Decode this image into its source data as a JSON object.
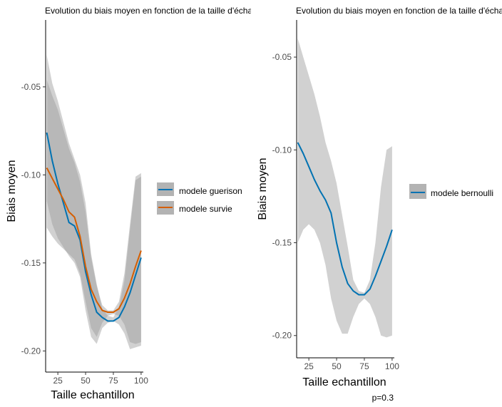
{
  "chart_data": [
    {
      "type": "line",
      "title": "Evolution du biais moyen en fonction de la taille d'échantillon",
      "xlabel": "Taille echantillon",
      "ylabel": "Biais moyen",
      "xlim": [
        14,
        102
      ],
      "ylim": [
        -0.212,
        -0.012
      ],
      "xticks": [
        25,
        50,
        75,
        100
      ],
      "xtick_labels": [
        "25",
        "50",
        "75",
        "100"
      ],
      "yticks": [
        -0.05,
        -0.1,
        -0.15,
        -0.2
      ],
      "ytick_labels": [
        "-0.05",
        "-0.10",
        "-0.15",
        "-0.20"
      ],
      "grid": false,
      "legend_position": "right",
      "series": [
        {
          "name": "modele guerison",
          "color": "#0072B2",
          "x": [
            15,
            20,
            25,
            30,
            35,
            40,
            45,
            50,
            55,
            60,
            65,
            70,
            75,
            80,
            85,
            90,
            95,
            100
          ],
          "y": [
            -0.076,
            -0.092,
            -0.105,
            -0.116,
            -0.127,
            -0.129,
            -0.137,
            -0.155,
            -0.168,
            -0.178,
            -0.181,
            -0.183,
            -0.183,
            -0.181,
            -0.175,
            -0.167,
            -0.157,
            -0.147
          ],
          "band_lower": [
            -0.115,
            -0.128,
            -0.136,
            -0.141,
            -0.146,
            -0.15,
            -0.158,
            -0.177,
            -0.192,
            -0.196,
            -0.187,
            -0.184,
            -0.183,
            -0.185,
            -0.19,
            -0.199,
            -0.198,
            -0.197
          ],
          "band_upper": [
            -0.032,
            -0.048,
            -0.058,
            -0.07,
            -0.082,
            -0.091,
            -0.1,
            -0.116,
            -0.145,
            -0.162,
            -0.176,
            -0.18,
            -0.181,
            -0.175,
            -0.16,
            -0.131,
            -0.103,
            -0.101
          ]
        },
        {
          "name": "modele survie",
          "color": "#D55E00",
          "x": [
            15,
            20,
            25,
            30,
            35,
            40,
            45,
            50,
            55,
            60,
            65,
            70,
            75,
            80,
            85,
            90,
            95,
            100
          ],
          "y": [
            -0.096,
            -0.102,
            -0.108,
            -0.114,
            -0.121,
            -0.124,
            -0.135,
            -0.152,
            -0.165,
            -0.172,
            -0.177,
            -0.178,
            -0.178,
            -0.176,
            -0.17,
            -0.162,
            -0.152,
            -0.143
          ],
          "band_lower": [
            -0.13,
            -0.135,
            -0.139,
            -0.142,
            -0.145,
            -0.148,
            -0.156,
            -0.172,
            -0.187,
            -0.192,
            -0.184,
            -0.18,
            -0.179,
            -0.18,
            -0.185,
            -0.195,
            -0.196,
            -0.195
          ],
          "band_upper": [
            -0.046,
            -0.055,
            -0.063,
            -0.074,
            -0.085,
            -0.093,
            -0.104,
            -0.121,
            -0.147,
            -0.163,
            -0.174,
            -0.177,
            -0.177,
            -0.172,
            -0.156,
            -0.128,
            -0.101,
            -0.099
          ]
        }
      ]
    },
    {
      "type": "line",
      "title": "Evolution du biais moyen en fonction de la taille d'échantillon",
      "xlabel": "Taille echantillon",
      "ylabel": "Biais moyen",
      "xlim": [
        14,
        102
      ],
      "ylim": [
        -0.212,
        -0.03
      ],
      "xticks": [
        25,
        50,
        75,
        100
      ],
      "xtick_labels": [
        "25",
        "50",
        "75",
        "100"
      ],
      "yticks": [
        -0.05,
        -0.1,
        -0.15,
        -0.2
      ],
      "ytick_labels": [
        "-0.05",
        "-0.10",
        "-0.15",
        "-0.20"
      ],
      "grid": false,
      "legend_position": "right",
      "caption": "p=0.3",
      "series": [
        {
          "name": "modele bernoulli",
          "color": "#0072B2",
          "x": [
            15,
            20,
            25,
            30,
            35,
            40,
            45,
            50,
            55,
            60,
            65,
            70,
            75,
            80,
            85,
            90,
            95,
            100
          ],
          "y": [
            -0.096,
            -0.102,
            -0.109,
            -0.116,
            -0.122,
            -0.127,
            -0.134,
            -0.15,
            -0.163,
            -0.172,
            -0.176,
            -0.178,
            -0.178,
            -0.175,
            -0.168,
            -0.16,
            -0.152,
            -0.143
          ],
          "band_lower": [
            -0.15,
            -0.143,
            -0.14,
            -0.143,
            -0.15,
            -0.162,
            -0.18,
            -0.192,
            -0.199,
            -0.199,
            -0.19,
            -0.183,
            -0.18,
            -0.183,
            -0.19,
            -0.2,
            -0.201,
            -0.2
          ],
          "band_upper": [
            -0.04,
            -0.05,
            -0.06,
            -0.07,
            -0.082,
            -0.096,
            -0.106,
            -0.118,
            -0.135,
            -0.152,
            -0.17,
            -0.176,
            -0.177,
            -0.17,
            -0.15,
            -0.12,
            -0.1,
            -0.098
          ]
        }
      ]
    }
  ]
}
